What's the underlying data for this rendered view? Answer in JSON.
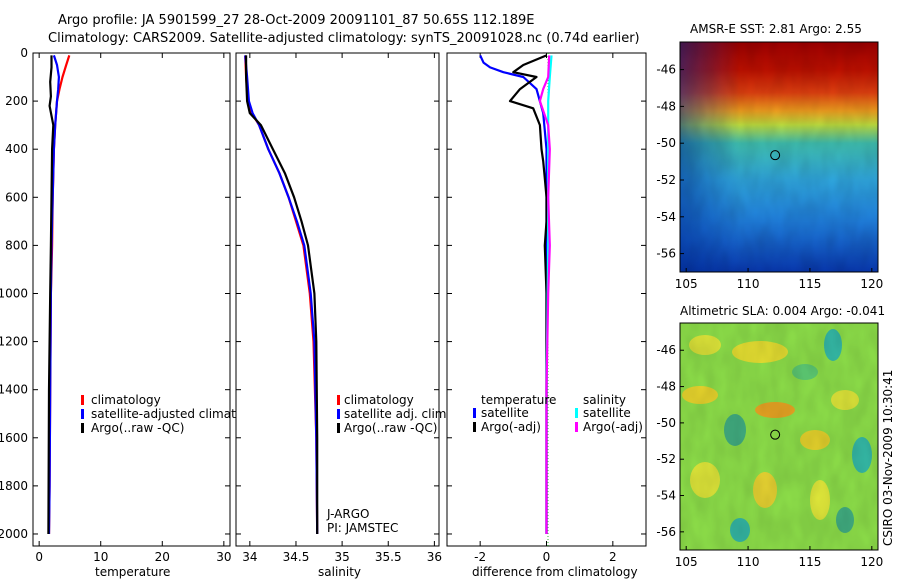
{
  "header": {
    "line1": "Argo profile: JA 5901599_27 28-Oct-2009 20091101_87 50.65S 112.189E",
    "line2": "Climatology: CARS2009. Satellite-adjusted climatology: synTS_20091028.nc (0.74d earlier)"
  },
  "side_credit": "CSIRO 03-Nov-2009 10:30:41",
  "colors": {
    "climatology": "#ff0000",
    "satellite": "#0000ff",
    "argo": "#000000",
    "sal_satellite": "#00ffff",
    "sal_argo": "#ff00ff"
  },
  "chart_data": [
    {
      "id": "temp",
      "type": "line",
      "xlabel": "temperature",
      "ylabel": "",
      "xlim": [
        -1,
        31
      ],
      "ylim": [
        2050,
        0
      ],
      "xticks": [
        0,
        10,
        20,
        30
      ],
      "xtick_labels": [
        "0",
        "10",
        "20",
        "30"
      ],
      "yticks": [
        0,
        200,
        400,
        600,
        800,
        1000,
        1200,
        1400,
        1600,
        1800,
        2000
      ],
      "ytick_labels": [
        "0",
        "200",
        "400",
        "600",
        "800",
        "1000",
        "1200",
        "1400",
        "1600",
        "1800",
        "2000"
      ],
      "legend": [
        "climatology",
        "satellite-adjusted climatolog",
        "Argo(..raw -QC)"
      ],
      "series": [
        {
          "name": "climatology",
          "color_key": "climatology",
          "x": [
            4.9,
            4.4,
            3.8,
            3.3,
            2.9,
            2.6,
            2.4,
            2.2,
            2.1,
            1.9,
            1.8,
            1.7,
            1.6
          ],
          "y": [
            10,
            50,
            100,
            150,
            200,
            300,
            400,
            600,
            800,
            1000,
            1400,
            1800,
            2000
          ]
        },
        {
          "name": "satellite",
          "color_key": "satellite",
          "x": [
            2.4,
            2.9,
            3.2,
            3.1,
            2.9,
            2.6,
            2.4,
            2.2,
            2.0,
            1.9,
            1.8,
            1.7,
            1.6
          ],
          "y": [
            10,
            50,
            100,
            150,
            200,
            300,
            400,
            600,
            800,
            1000,
            1400,
            1800,
            2000
          ]
        },
        {
          "name": "argo",
          "color_key": "argo",
          "x": [
            2.0,
            2.0,
            1.8,
            1.9,
            1.7,
            2.3,
            2.1,
            2.0,
            1.9,
            1.8,
            1.6,
            1.5
          ],
          "y": [
            10,
            60,
            120,
            180,
            220,
            300,
            400,
            600,
            800,
            1000,
            1400,
            2000
          ]
        }
      ]
    },
    {
      "id": "sal",
      "type": "line",
      "xlabel": "salinity",
      "ylabel": "",
      "xlim": [
        33.85,
        36.05
      ],
      "ylim": [
        2050,
        0
      ],
      "xticks": [
        34,
        34.5,
        35,
        35.5,
        36
      ],
      "xtick_labels": [
        "34",
        "34.5",
        "35",
        "35.5",
        "36"
      ],
      "legend": [
        "climatology",
        "satellite adj. clim.",
        "Argo(..raw -QC)"
      ],
      "annotation": [
        "J-ARGO",
        "PI: JAMSTEC"
      ],
      "series": [
        {
          "name": "climatology",
          "color_key": "climatology",
          "x": [
            33.95,
            33.96,
            33.98,
            34.02,
            34.1,
            34.2,
            34.32,
            34.42,
            34.5,
            34.58,
            34.65,
            34.69,
            34.72,
            34.73
          ],
          "y": [
            10,
            100,
            200,
            250,
            300,
            400,
            500,
            600,
            700,
            800,
            1000,
            1200,
            1600,
            2000
          ]
        },
        {
          "name": "satellite",
          "color_key": "satellite",
          "x": [
            33.95,
            33.97,
            33.99,
            34.03,
            34.1,
            34.2,
            34.32,
            34.42,
            34.51,
            34.59,
            34.66,
            34.7,
            34.72,
            34.73
          ],
          "y": [
            10,
            100,
            200,
            250,
            300,
            400,
            500,
            600,
            700,
            800,
            1000,
            1200,
            1600,
            2000
          ]
        },
        {
          "name": "argo",
          "color_key": "argo",
          "x": [
            33.96,
            33.96,
            33.97,
            34.0,
            34.12,
            34.25,
            34.38,
            34.48,
            34.56,
            34.63,
            34.7,
            34.72,
            34.73,
            34.73
          ],
          "y": [
            10,
            100,
            200,
            250,
            300,
            400,
            500,
            600,
            700,
            800,
            1000,
            1200,
            1600,
            2000
          ]
        }
      ]
    },
    {
      "id": "diff",
      "type": "line",
      "xlabel": "difference from climatology",
      "ylabel": "",
      "xlim": [
        -3,
        3
      ],
      "ylim": [
        2050,
        0
      ],
      "xticks": [
        -2,
        0,
        2
      ],
      "xtick_labels": [
        "-2",
        "0",
        "2"
      ],
      "legend_groups": [
        {
          "title": "temperature",
          "items": [
            "satellite",
            "Argo(-adj)"
          ]
        },
        {
          "title": "salinity",
          "items": [
            "satellite",
            "Argo(-adj)"
          ]
        }
      ],
      "series": [
        {
          "name": "temperature satellite",
          "color_key": "satellite",
          "x": [
            -2.0,
            -1.9,
            -1.7,
            -1.3,
            -0.7,
            -0.3,
            -0.1,
            0.0,
            0.0,
            0.0,
            0.0
          ],
          "y": [
            10,
            40,
            60,
            80,
            100,
            150,
            250,
            400,
            800,
            1400,
            2000
          ]
        },
        {
          "name": "temperature Argo(-adj)",
          "color_key": "argo",
          "x": [
            0.0,
            -0.7,
            -1.0,
            -0.3,
            -0.8,
            -1.1,
            -0.4,
            -0.2,
            -0.15,
            -0.1,
            -0.05,
            0.0,
            0.0,
            -0.05,
            0.0,
            0.0,
            0.0,
            0.0
          ],
          "y": [
            10,
            50,
            80,
            100,
            150,
            200,
            230,
            300,
            400,
            450,
            520,
            600,
            700,
            800,
            1000,
            1400,
            1800,
            2000
          ]
        },
        {
          "name": "salinity satellite",
          "color_key": "sal_satellite",
          "x": [
            0.15,
            0.1,
            0.05,
            0.05,
            0.05,
            0.0,
            0.0
          ],
          "y": [
            10,
            100,
            200,
            400,
            800,
            1400,
            2000
          ]
        },
        {
          "name": "salinity Argo(-adj)",
          "color_key": "sal_argo",
          "x": [
            0.08,
            0.05,
            -0.1,
            -0.2,
            0.05,
            0.1,
            0.05,
            0.1,
            0.05,
            0.0,
            0.0
          ],
          "y": [
            10,
            100,
            150,
            200,
            300,
            400,
            600,
            800,
            1000,
            1400,
            2000
          ]
        }
      ]
    },
    {
      "id": "sst_map",
      "type": "heatmap",
      "title": "AMSR-E SST: 2.81 Argo: 2.55",
      "xlim": [
        104.5,
        120.5
      ],
      "ylim": [
        -57,
        -44.5
      ],
      "xticks": [
        105,
        110,
        115,
        120
      ],
      "xtick_labels": [
        "105",
        "110",
        "115",
        "120"
      ],
      "yticks": [
        -46,
        -48,
        -50,
        -52,
        -54,
        -56
      ],
      "ytick_labels": [
        "-46",
        "-48",
        "-50",
        "-52",
        "-54",
        "-56"
      ],
      "marker": {
        "lon": 112.189,
        "lat": -50.65
      },
      "field": "warm north (red) to cold south (blue)"
    },
    {
      "id": "sla_map",
      "type": "heatmap",
      "title": "Altimetric SLA: 0.004 Argo: -0.041",
      "xlim": [
        104.5,
        120.5
      ],
      "ylim": [
        -57,
        -44.5
      ],
      "xticks": [
        105,
        110,
        115,
        120
      ],
      "xtick_labels": [
        "105",
        "110",
        "115",
        "120"
      ],
      "yticks": [
        -46,
        -48,
        -50,
        -52,
        -54,
        -56
      ],
      "ytick_labels": [
        "-46",
        "-48",
        "-50",
        "-52",
        "-54",
        "-56"
      ],
      "marker": {
        "lon": 112.189,
        "lat": -50.65
      },
      "field": "mottled green/yellow/cyan anomalies"
    }
  ]
}
